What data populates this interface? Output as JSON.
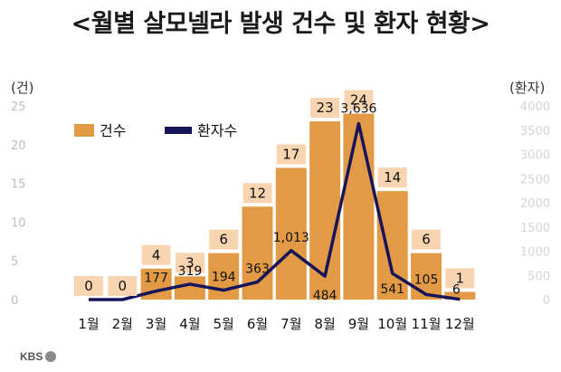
{
  "title": "<월별 살모넬라 발생 건수 및 환자 현황>",
  "logo_text": "KBS",
  "colors": {
    "bar": "#e39a45",
    "line": "#16145a",
    "label_box": "#f8d4b0",
    "right_axis": "#d4d4d4",
    "left_axis": "#bdbdbd"
  },
  "chart_data": {
    "type": "bar",
    "title": "<월별 살모넬라 발생 건수 및 환자 현황>",
    "categories": [
      "1월",
      "2월",
      "3월",
      "4월",
      "5월",
      "6월",
      "7월",
      "8월",
      "9월",
      "10월",
      "11월",
      "12월"
    ],
    "series": [
      {
        "name": "건수",
        "type": "bar",
        "axis": "left",
        "values": [
          0,
          0,
          4,
          3,
          6,
          12,
          17,
          23,
          24,
          14,
          6,
          1
        ],
        "labels": [
          "0",
          "0",
          "4",
          "3",
          "6",
          "12",
          "17",
          "23",
          "24",
          "14",
          "6",
          "1"
        ]
      },
      {
        "name": "환자수",
        "type": "line",
        "axis": "right",
        "values": [
          0,
          0,
          177,
          319,
          194,
          363,
          1013,
          484,
          3636,
          541,
          105,
          6
        ],
        "labels": [
          "",
          "",
          "177",
          "319",
          "194",
          "363",
          "1,013",
          "484",
          "3,636",
          "541",
          "105",
          "6"
        ]
      }
    ],
    "left_axis": {
      "label": "(건)",
      "ylim": [
        0,
        25
      ],
      "ticks": [
        "0",
        "5",
        "10",
        "15",
        "20",
        "25"
      ]
    },
    "right_axis": {
      "label": "(환자)",
      "ylim": [
        0,
        4000
      ],
      "ticks": [
        "0",
        "500",
        "1000",
        "1500",
        "2000",
        "2500",
        "3000",
        "3500",
        "4000"
      ]
    },
    "legend": {
      "placement": "top-left"
    },
    "grid": false
  }
}
